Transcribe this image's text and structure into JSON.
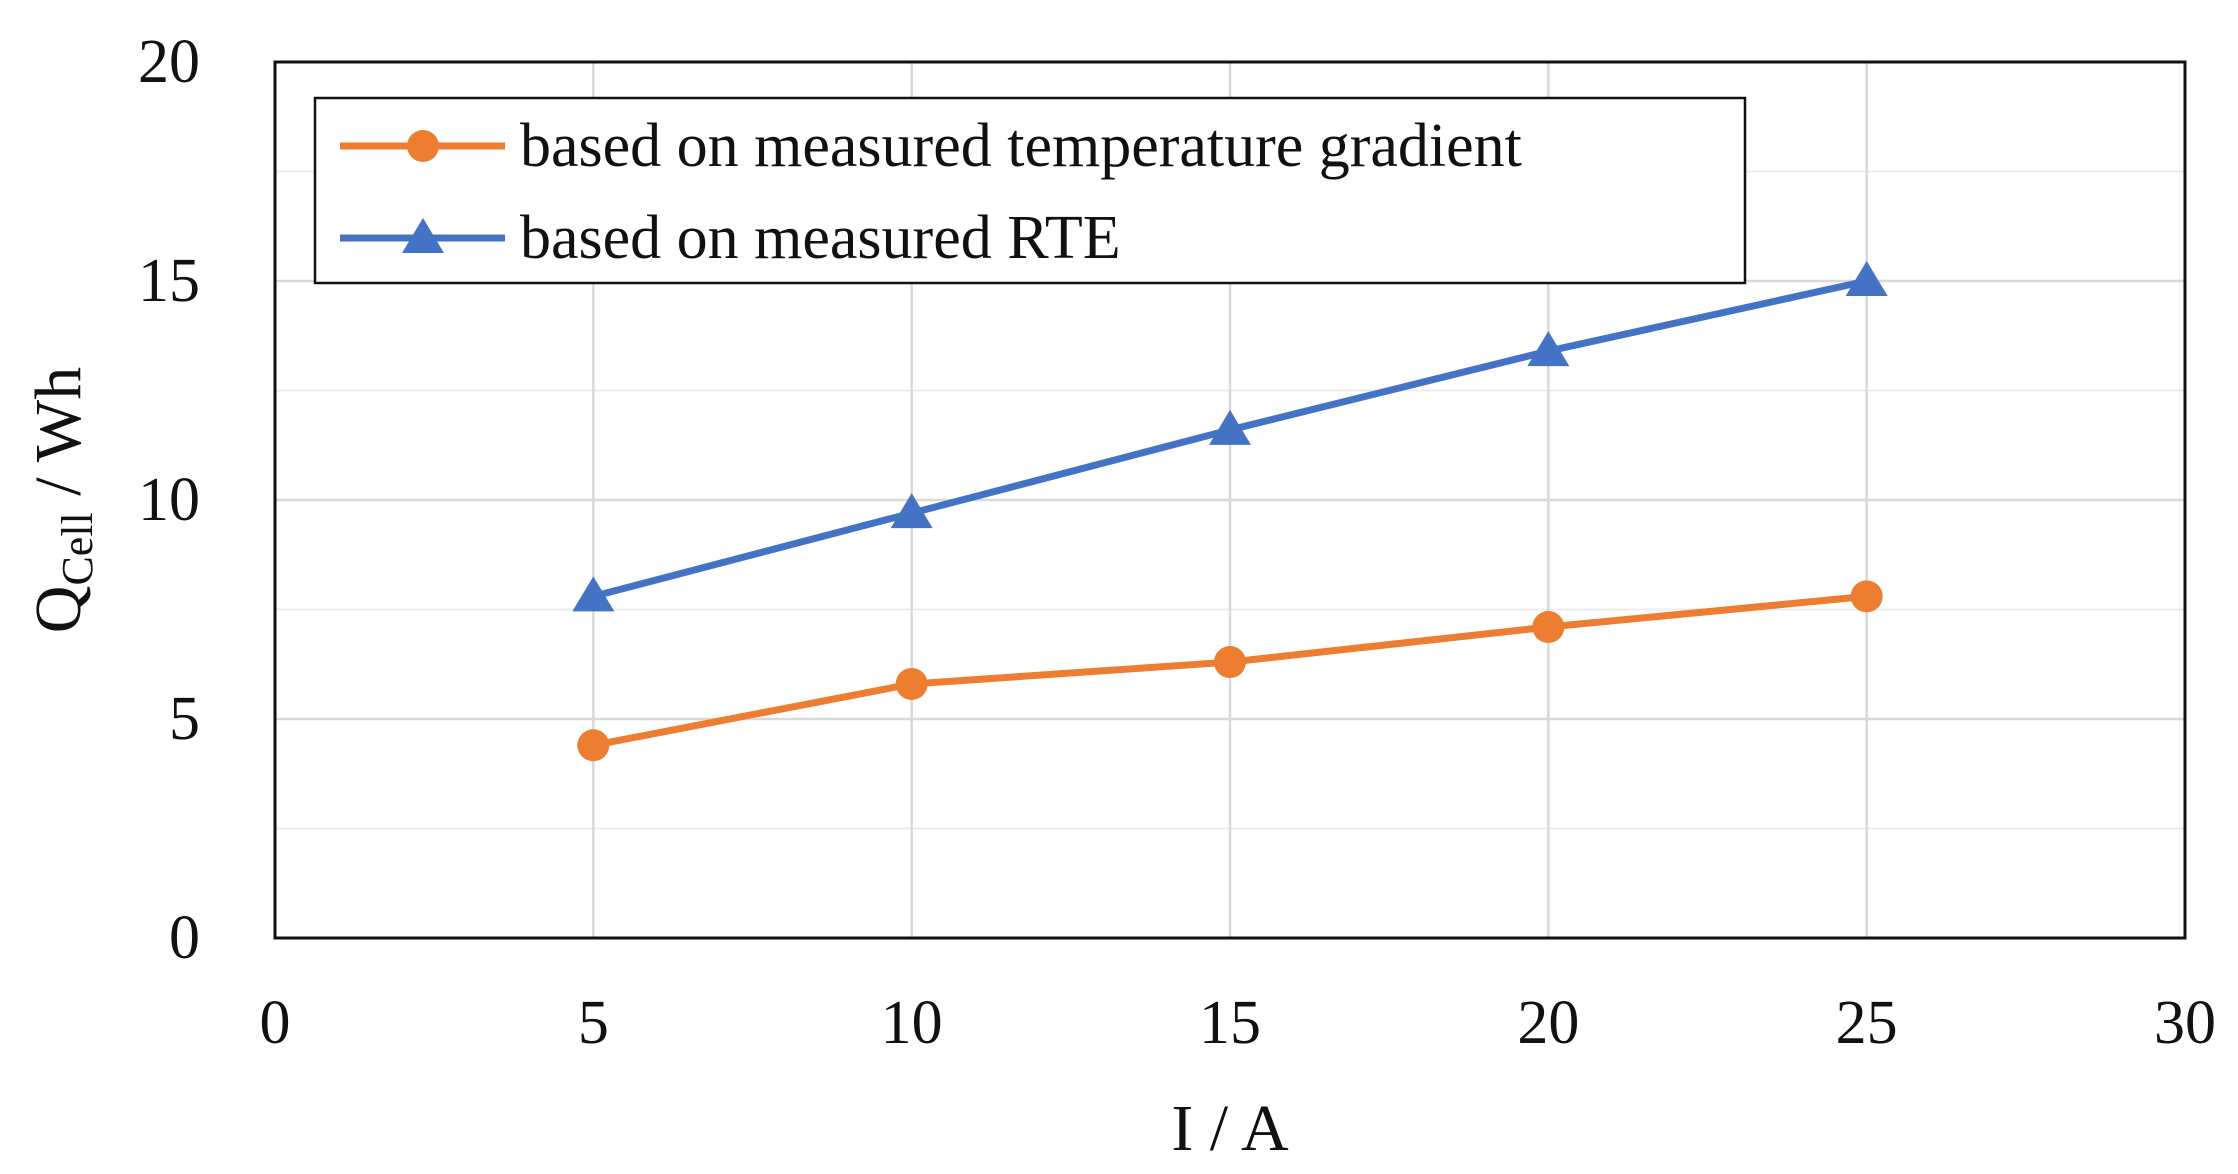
{
  "chart_data": {
    "type": "line",
    "title": "",
    "xlabel": "I / A",
    "ylabel": {
      "main": "Q",
      "subscript": "Cell",
      "suffix": " / Wh"
    },
    "xlim": [
      0,
      30
    ],
    "ylim": [
      0,
      20
    ],
    "xticks": [
      0,
      5,
      10,
      15,
      20,
      25,
      30
    ],
    "yticks": [
      0,
      5,
      10,
      15,
      20
    ],
    "yminor": [
      2.5,
      7.5,
      12.5,
      17.5
    ],
    "grid": true,
    "legend_position": "top-left",
    "x": [
      5,
      10,
      15,
      20,
      25
    ],
    "series": [
      {
        "name": "based on measured temperature gradient",
        "marker": "circle",
        "color": "#ED7D31",
        "values": [
          4.4,
          5.8,
          6.3,
          7.1,
          7.8
        ]
      },
      {
        "name": "based on measured RTE",
        "marker": "triangle",
        "color": "#4472C4",
        "values": [
          7.8,
          9.7,
          11.6,
          13.4,
          15.0
        ]
      }
    ]
  }
}
